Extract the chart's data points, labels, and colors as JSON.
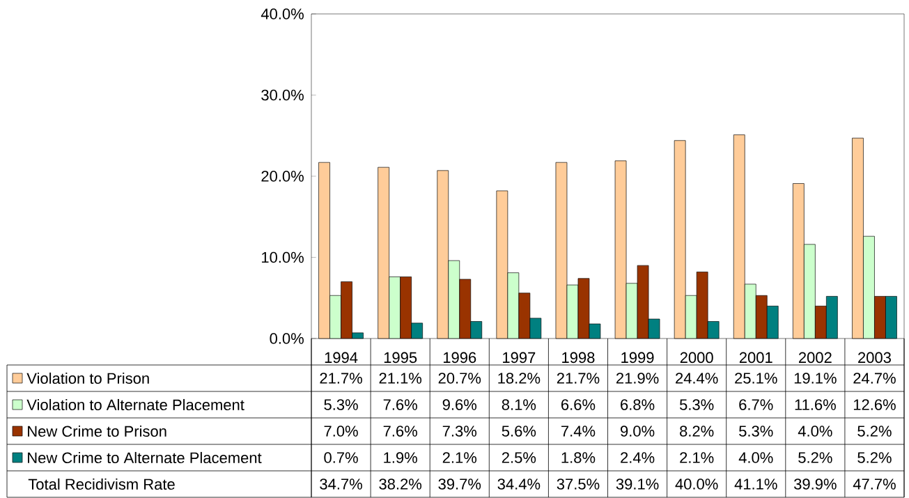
{
  "chart_data": {
    "type": "bar",
    "categories": [
      "1994",
      "1995",
      "1996",
      "1997",
      "1998",
      "1999",
      "2000",
      "2001",
      "2002",
      "2003"
    ],
    "series": [
      {
        "name": "Violation to Prison",
        "color": "#ffcc99",
        "values": [
          21.7,
          21.1,
          20.7,
          18.2,
          21.7,
          21.9,
          24.4,
          25.1,
          19.1,
          24.7
        ],
        "value_labels": [
          "21.7%",
          "21.1%",
          "20.7%",
          "18.2%",
          "21.7%",
          "21.9%",
          "24.4%",
          "25.1%",
          "19.1%",
          "24.7%"
        ]
      },
      {
        "name": "Violation to Alternate Placement",
        "color": "#ccffcc",
        "values": [
          5.3,
          7.6,
          9.6,
          8.1,
          6.6,
          6.8,
          5.3,
          6.7,
          11.6,
          12.6
        ],
        "value_labels": [
          "5.3%",
          "7.6%",
          "9.6%",
          "8.1%",
          "6.6%",
          "6.8%",
          "5.3%",
          "6.7%",
          "11.6%",
          "12.6%"
        ]
      },
      {
        "name": "New Crime to Prison",
        "color": "#993300",
        "values": [
          7.0,
          7.6,
          7.3,
          5.6,
          7.4,
          9.0,
          8.2,
          5.3,
          4.0,
          5.2
        ],
        "value_labels": [
          "7.0%",
          "7.6%",
          "7.3%",
          "5.6%",
          "7.4%",
          "9.0%",
          "8.2%",
          "5.3%",
          "4.0%",
          "5.2%"
        ]
      },
      {
        "name": "New Crime to Alternate Placement",
        "color": "#008080",
        "values": [
          0.7,
          1.9,
          2.1,
          2.5,
          1.8,
          2.4,
          2.1,
          4.0,
          5.2,
          5.2
        ],
        "value_labels": [
          "0.7%",
          "1.9%",
          "2.1%",
          "2.5%",
          "1.8%",
          "2.4%",
          "2.1%",
          "4.0%",
          "5.2%",
          "5.2%"
        ]
      }
    ],
    "annotations": [
      "Total Recidivism Rate",
      "34.7%",
      "38.2%",
      "39.7%",
      "34.4%",
      "37.5%",
      "39.1%",
      "40.0%",
      "41.1%",
      "39.9%",
      "47.7%"
    ],
    "ylim": [
      0,
      40
    ],
    "yticks": [
      {
        "value": 0,
        "label": "0.0%"
      },
      {
        "value": 10,
        "label": "10.0%"
      },
      {
        "value": 20,
        "label": "20.0%"
      },
      {
        "value": 30,
        "label": "30.0%"
      },
      {
        "value": 40,
        "label": "40.0%"
      }
    ],
    "legend": "bottom"
  }
}
